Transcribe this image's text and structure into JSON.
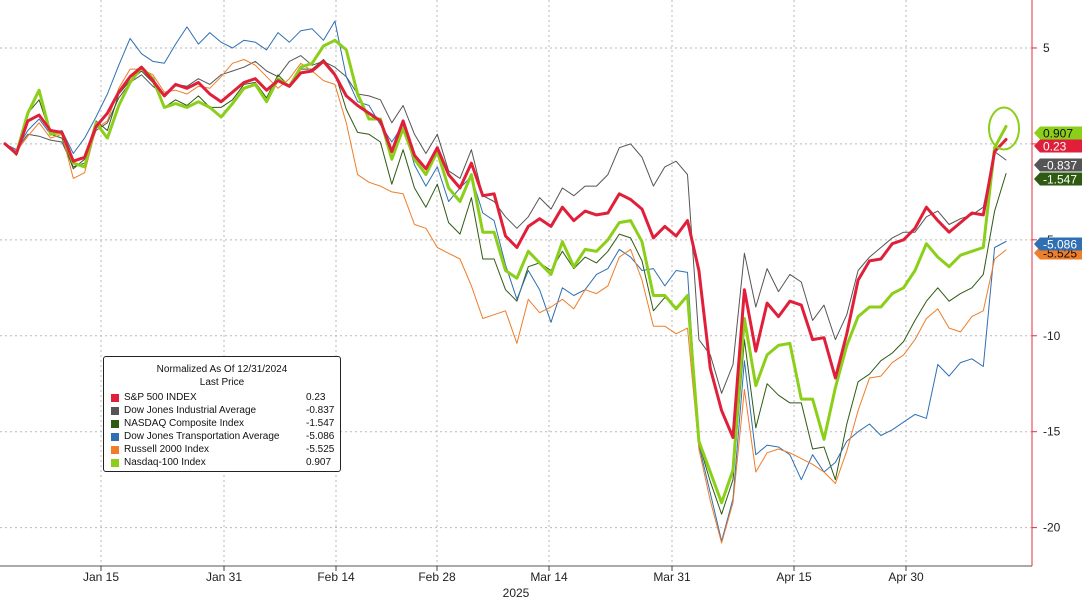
{
  "chart_data": {
    "type": "line",
    "x_axis": {
      "year_label": "2025",
      "ticks": [
        "Jan 15",
        "Jan 31",
        "Feb 14",
        "Feb 28",
        "Mar 14",
        "Mar 31",
        "Apr 15",
        "Apr 30"
      ]
    },
    "y_axis": {
      "ticks": [
        5,
        0,
        -5,
        -10,
        -15,
        -20
      ],
      "tick_labels": [
        "5",
        "0",
        "-5",
        "-10",
        "-15",
        "-20"
      ],
      "range": [
        -22,
        7.5
      ],
      "position": "right"
    },
    "grid": true,
    "legend": {
      "placement": "bottom-left",
      "title": "Normalized As Of 12/31/2024",
      "subtitle": "Last Price"
    },
    "annotation": "green ellipse circling the Nasdaq-100 Index end value",
    "series": [
      {
        "name": "S&P 500 INDEX",
        "last_label": "0.23",
        "badge_label": "0.23",
        "color": "#e0203a",
        "width": 3,
        "values": [
          0,
          -0.5,
          1.2,
          1.5,
          0.7,
          0.6,
          -0.9,
          -0.7,
          0.9,
          1.6,
          2.7,
          3.5,
          4.0,
          3.3,
          2.5,
          3.1,
          2.9,
          3.2,
          2.6,
          2.2,
          2.7,
          3.2,
          3.4,
          2.8,
          3.3,
          3.0,
          3.7,
          3.8,
          4.3,
          3.6,
          2.5,
          2.0,
          1.6,
          1.2,
          -0.4,
          1.2,
          -0.6,
          -1.3,
          -0.2,
          -1.6,
          -2.3,
          -1.0,
          -2.7,
          -2.6,
          -4.8,
          -5.4,
          -4.3,
          -3.9,
          -4.3,
          -3.3,
          -4.0,
          -3.5,
          -3.7,
          -3.6,
          -2.6,
          -2.9,
          -3.4,
          -4.9,
          -4.3,
          -4.8,
          -4.0,
          -6.6,
          -11.7,
          -13.9,
          -15.3,
          -7.6,
          -10.8,
          -8.3,
          -9.0,
          -8.2,
          -8.4,
          -10.2,
          -10.1,
          -12.2,
          -9.9,
          -7.1,
          -6.1,
          -6.0,
          -5.2,
          -5.0,
          -4.4,
          -3.3,
          -4.0,
          -4.6,
          -4.1,
          -3.6,
          -3.7,
          -0.4,
          0.23
        ]
      },
      {
        "name": "Dow Jones Industrial Average",
        "last_label": "-0.837",
        "badge_label": "-0.837",
        "color": "#555555",
        "width": 1,
        "values": [
          0,
          -0.3,
          0.5,
          0.4,
          0.2,
          0.1,
          -1.2,
          -1.0,
          0.7,
          1.1,
          2.4,
          3.2,
          3.6,
          3.0,
          2.6,
          3.1,
          3.0,
          3.4,
          3.1,
          3.6,
          3.8,
          4.0,
          4.3,
          3.8,
          3.5,
          4.3,
          4.6,
          4.1,
          4.3,
          4.0,
          3.5,
          2.6,
          2.5,
          2.3,
          1.1,
          2.0,
          0.5,
          -0.5,
          0.5,
          -1.4,
          -1.8,
          -0.3,
          -2.7,
          -3.0,
          -3.8,
          -4.4,
          -3.8,
          -2.8,
          -3.4,
          -2.3,
          -2.7,
          -2.2,
          -2.2,
          -1.6,
          -0.2,
          0.0,
          -0.7,
          -2.2,
          -1.2,
          -0.9,
          -1.6,
          -10.2,
          -11.0,
          -13.0,
          -11.5,
          -5.7,
          -8.5,
          -6.5,
          -7.7,
          -6.8,
          -7.2,
          -9.2,
          -8.4,
          -10.2,
          -8.9,
          -6.6,
          -5.9,
          -5.4,
          -4.9,
          -4.6,
          -4.6,
          -3.8,
          -3.5,
          -4.2,
          -3.9,
          -3.7,
          -3.3,
          -0.4,
          -0.837
        ]
      },
      {
        "name": "NASDAQ Composite Index",
        "last_label": "-1.547",
        "badge_label": "-1.547",
        "color": "#2e5a12",
        "width": 1,
        "values": [
          0,
          -0.6,
          1.6,
          2.3,
          0.5,
          0.3,
          -1.3,
          -0.8,
          1.2,
          0.7,
          2.6,
          3.3,
          3.8,
          3.2,
          1.9,
          2.3,
          2.0,
          2.5,
          1.9,
          1.9,
          2.3,
          3.1,
          3.2,
          2.4,
          3.6,
          3.0,
          3.9,
          3.9,
          4.4,
          3.7,
          1.8,
          0.6,
          0.5,
          0.1,
          -2.1,
          -0.3,
          -2.3,
          -3.3,
          -2.1,
          -4.1,
          -4.7,
          -2.8,
          -6.0,
          -6.0,
          -7.6,
          -8.2,
          -6.4,
          -6.2,
          -6.6,
          -5.6,
          -6.5,
          -5.9,
          -6.2,
          -5.6,
          -4.7,
          -4.9,
          -6.1,
          -8.7,
          -8.0,
          -8.5,
          -8.0,
          -15.6,
          -17.6,
          -19.3,
          -17.5,
          -10.2,
          -14.8,
          -12.5,
          -13.1,
          -13.5,
          -13.5,
          -15.9,
          -15.8,
          -17.5,
          -14.6,
          -12.4,
          -12.0,
          -11.3,
          -10.9,
          -10.3,
          -9.2,
          -8.2,
          -7.5,
          -8.2,
          -7.8,
          -7.5,
          -6.8,
          -3.5,
          -1.547
        ]
      },
      {
        "name": "Dow Jones Transportation Average",
        "last_label": "-5.086",
        "badge_label": "-5.086",
        "color": "#2f6fb2",
        "width": 1,
        "values": [
          0,
          -0.3,
          0.7,
          1.3,
          0.5,
          0.7,
          -0.5,
          0.3,
          1.4,
          2.6,
          4.1,
          5.5,
          4.7,
          4.3,
          4.2,
          5.2,
          6.1,
          5.2,
          5.8,
          5.3,
          5.0,
          5.4,
          5.3,
          4.9,
          5.8,
          5.3,
          5.9,
          6.0,
          5.4,
          6.4,
          3.5,
          2.2,
          2.0,
          1.0,
          0.1,
          1.0,
          -1.1,
          -2.2,
          -1.2,
          -3.0,
          -2.3,
          -1.7,
          -3.6,
          -4.0,
          -6.3,
          -8.1,
          -6.6,
          -7.6,
          -9.3,
          -7.5,
          -7.9,
          -7.6,
          -6.8,
          -6.5,
          -5.5,
          -5.9,
          -6.6,
          -6.5,
          -7.4,
          -6.6,
          -6.7,
          -15.7,
          -18.2,
          -20.7,
          -18.5,
          -11.3,
          -16.2,
          -15.7,
          -15.8,
          -16.2,
          -17.5,
          -16.2,
          -17.1,
          -16.6,
          -15.5,
          -15.0,
          -14.6,
          -15.2,
          -14.9,
          -14.5,
          -14.1,
          -14.3,
          -11.5,
          -12.1,
          -11.4,
          -11.2,
          -11.6,
          -5.4,
          -5.086
        ]
      },
      {
        "name": "Russell 2000 Index",
        "last_label": "-5.525",
        "badge_label": "-5.525",
        "color": "#ef7d29",
        "width": 1,
        "values": [
          0,
          -0.4,
          0.4,
          1.1,
          0.3,
          0.5,
          -1.8,
          -1.5,
          0.8,
          1.2,
          2.9,
          3.9,
          3.9,
          3.6,
          2.7,
          2.8,
          2.6,
          3.0,
          2.9,
          3.5,
          4.2,
          4.4,
          4.1,
          3.5,
          2.9,
          3.4,
          4.2,
          3.8,
          3.3,
          3.1,
          1.1,
          -1.6,
          -2.0,
          -2.2,
          -2.5,
          -2.6,
          -4.2,
          -4.4,
          -5.4,
          -5.7,
          -6.0,
          -7.4,
          -9.1,
          -8.9,
          -8.7,
          -10.4,
          -8.1,
          -8.8,
          -8.5,
          -8.1,
          -8.6,
          -7.6,
          -7.8,
          -7.4,
          -5.9,
          -5.5,
          -7.1,
          -9.5,
          -9.5,
          -9.9,
          -9.6,
          -15.9,
          -18.6,
          -20.8,
          -18.7,
          -12.8,
          -17.1,
          -16.1,
          -15.9,
          -16.1,
          -16.4,
          -16.7,
          -17.1,
          -17.7,
          -16.0,
          -13.9,
          -12.2,
          -12.1,
          -11.4,
          -11.0,
          -10.2,
          -9.1,
          -8.6,
          -9.6,
          -9.8,
          -9.0,
          -8.7,
          -6.0,
          -5.525
        ]
      },
      {
        "name": "Nasdaq-100 Index",
        "last_label": "0.907",
        "badge_label": "0.907",
        "color": "#8ccf1a",
        "width": 3,
        "values": [
          0,
          -0.5,
          1.6,
          2.8,
          0.5,
          0.6,
          -1.0,
          -1.2,
          1.1,
          0.3,
          2.0,
          3.2,
          4.0,
          3.4,
          1.9,
          2.1,
          1.9,
          2.2,
          1.9,
          1.4,
          2.1,
          2.9,
          3.1,
          2.2,
          3.4,
          3.0,
          4.0,
          4.2,
          5.1,
          5.4,
          4.9,
          2.6,
          1.3,
          1.3,
          -0.8,
          0.8,
          -0.8,
          -1.6,
          -0.4,
          -2.3,
          -3.0,
          -1.6,
          -4.6,
          -4.6,
          -6.6,
          -7.0,
          -5.6,
          -6.2,
          -6.8,
          -5.1,
          -6.4,
          -5.5,
          -5.6,
          -5.0,
          -4.1,
          -4.0,
          -5.1,
          -7.9,
          -7.9,
          -8.6,
          -7.9,
          -15.5,
          -17.1,
          -18.7,
          -17.0,
          -9.1,
          -12.6,
          -11.0,
          -10.5,
          -10.4,
          -13.3,
          -13.3,
          -15.4,
          -12.7,
          -10.5,
          -9.0,
          -8.5,
          -8.5,
          -7.8,
          -7.5,
          -6.6,
          -5.2,
          -5.9,
          -6.4,
          -5.8,
          -5.6,
          -5.4,
          -0.2,
          0.907
        ]
      }
    ]
  }
}
